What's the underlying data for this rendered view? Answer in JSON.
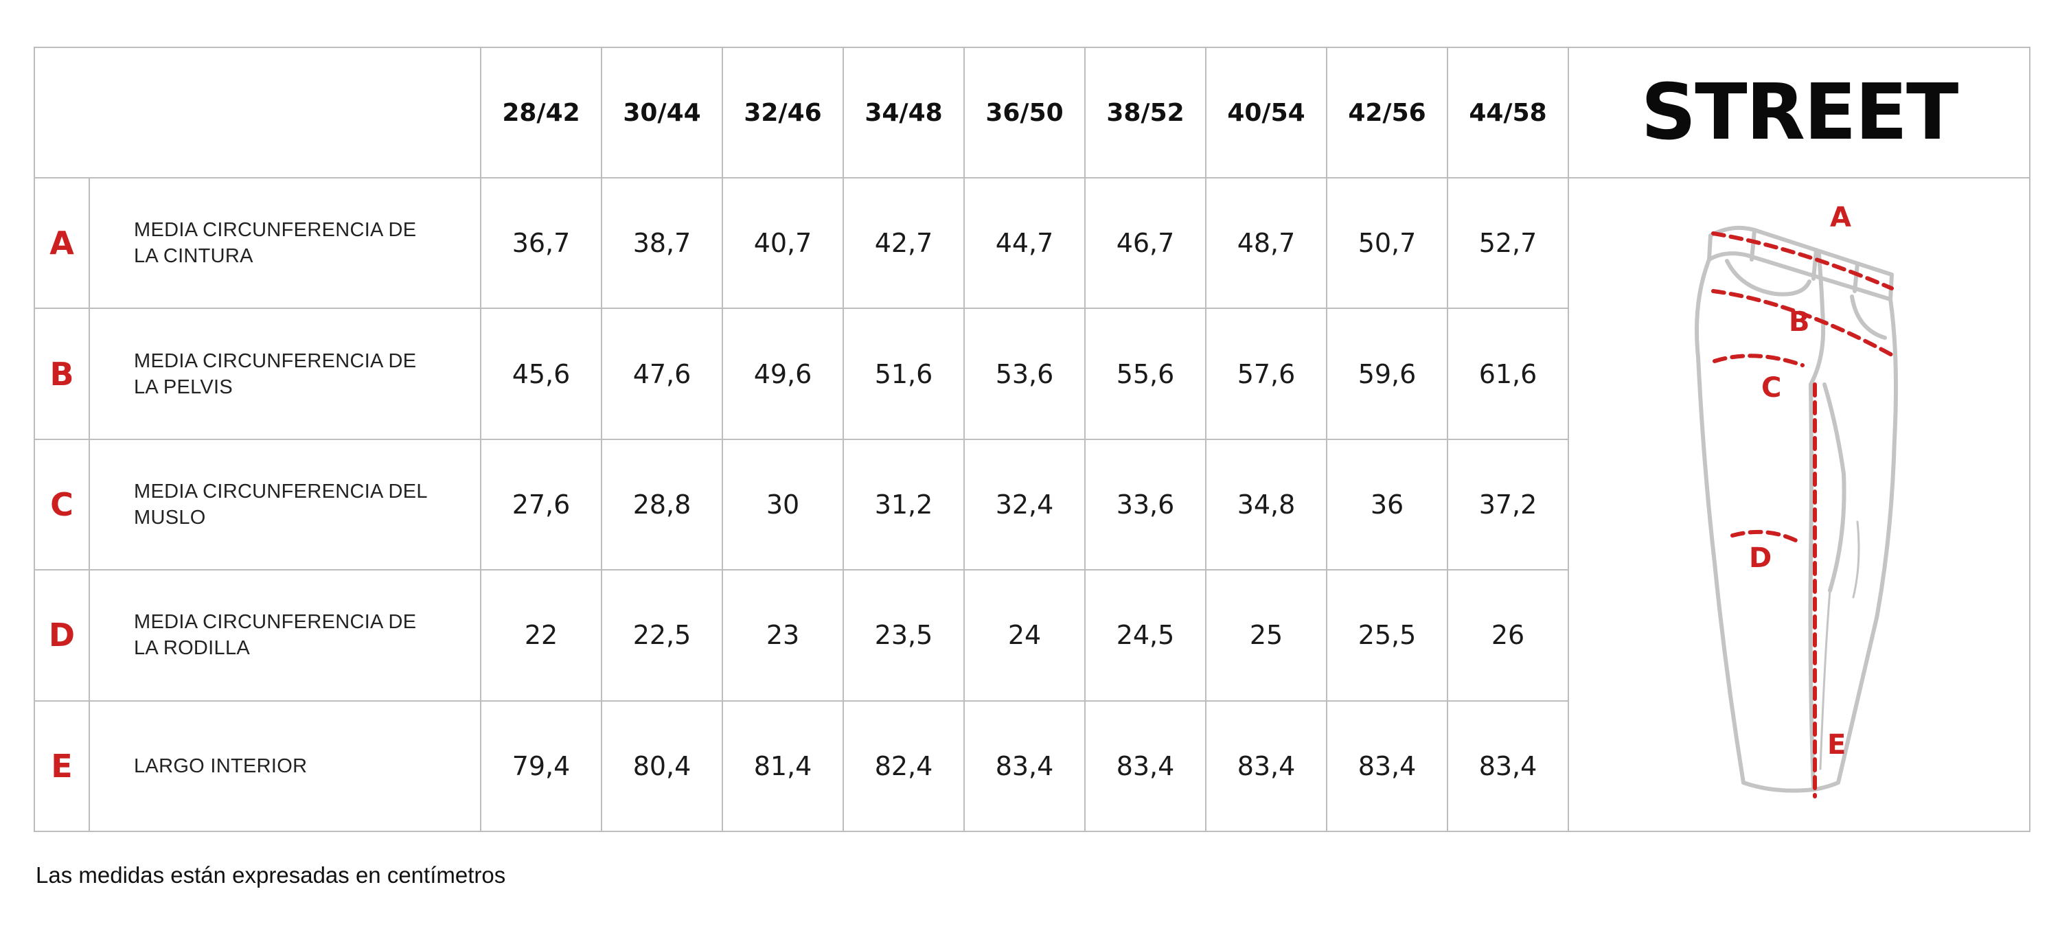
{
  "header": {
    "brand": "STREET",
    "sizes": [
      "28/42",
      "30/44",
      "32/46",
      "34/48",
      "36/50",
      "38/52",
      "40/54",
      "42/56",
      "44/58"
    ]
  },
  "rows": [
    {
      "letter": "A",
      "label_line1": "MEDIA CIRCUNFERENCIA DE",
      "label_line2": "LA CINTURA",
      "values": [
        "36,7",
        "38,7",
        "40,7",
        "42,7",
        "44,7",
        "46,7",
        "48,7",
        "50,7",
        "52,7"
      ]
    },
    {
      "letter": "B",
      "label_line1": "MEDIA CIRCUNFERENCIA DE",
      "label_line2": "LA PELVIS",
      "values": [
        "45,6",
        "47,6",
        "49,6",
        "51,6",
        "53,6",
        "55,6",
        "57,6",
        "59,6",
        "61,6"
      ]
    },
    {
      "letter": "C",
      "label_line1": "MEDIA CIRCUNFERENCIA DEL",
      "label_line2": "MUSLO",
      "values": [
        "27,6",
        "28,8",
        "30",
        "31,2",
        "32,4",
        "33,6",
        "34,8",
        "36",
        "37,2"
      ]
    },
    {
      "letter": "D",
      "label_line1": "MEDIA CIRCUNFERENCIA DE",
      "label_line2": "LA RODILLA",
      "values": [
        "22",
        "22,5",
        "23",
        "23,5",
        "24",
        "24,5",
        "25",
        "25,5",
        "26"
      ]
    },
    {
      "letter": "E",
      "label_line1": "LARGO INTERIOR",
      "label_line2": "",
      "values": [
        "79,4",
        "80,4",
        "81,4",
        "82,4",
        "83,4",
        "83,4",
        "83,4",
        "83,4",
        "83,4"
      ]
    }
  ],
  "illustration": {
    "icon": "jeans-measurement-diagram",
    "labels": [
      "A",
      "B",
      "C",
      "D",
      "E"
    ],
    "outline_color": "#c4c4c4",
    "measure_color": "#cc1f1f"
  },
  "colors": {
    "accent_red": "#cc1f1f",
    "grid": "#bdbdbd",
    "text": "#1a1a1a"
  },
  "footnote": "Las medidas están expresadas en centímetros"
}
